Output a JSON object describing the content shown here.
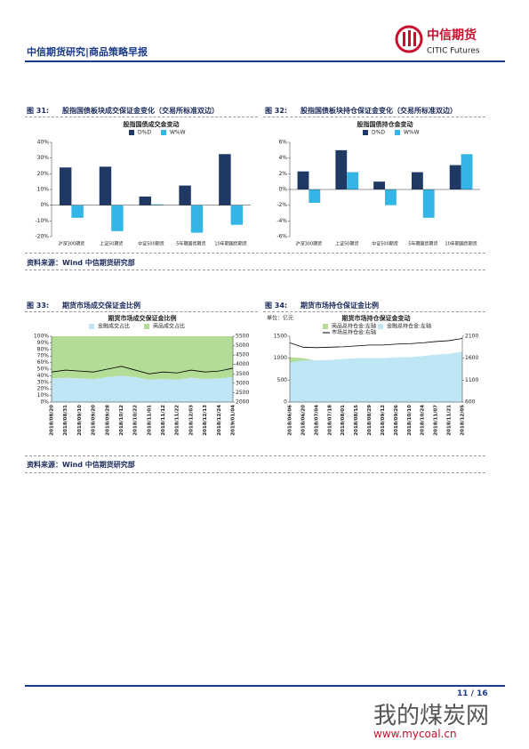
{
  "header": {
    "title": "中信期货研究|商品策略早报",
    "logo_cn": "中信期货",
    "logo_en": "CITIC Futures"
  },
  "figures": [
    {
      "label": "图 31:",
      "title": "股指国债板块成交保证金变化（交易所标准双边）"
    },
    {
      "label": "图 32:",
      "title": "股指国债板块持仓保证金变化（交易所标准双边）"
    },
    {
      "label": "图 33:",
      "title": "期货市场成交保证金比例"
    },
    {
      "label": "图 34:",
      "title": "期货市场持仓保证金比例"
    }
  ],
  "sources": [
    "资料来源：Wind 中信期货研究部",
    "资料来源：Wind 中信期货研究部"
  ],
  "chart_data": [
    {
      "type": "bar",
      "title": "股指国债成交金变动",
      "categories": [
        "沪深300期货",
        "上证50期货",
        "中证500期货",
        "5年期国债期货",
        "10年期国债期货"
      ],
      "series": [
        {
          "name": "D%D",
          "color": "#1f3864",
          "values": [
            24,
            24.5,
            5.5,
            12.5,
            32.5
          ]
        },
        {
          "name": "W%W",
          "color": "#33b5e5",
          "values": [
            -8,
            -16.5,
            0.5,
            -17.5,
            -12.5
          ]
        }
      ],
      "ylim": [
        -20,
        40
      ],
      "yticks": [
        {
          "value": -20,
          "label": "-20%"
        },
        {
          "value": -10,
          "label": "-10%"
        },
        {
          "value": 0,
          "label": "0%"
        },
        {
          "value": 10,
          "label": "10%"
        },
        {
          "value": 20,
          "label": "20%"
        },
        {
          "value": 30,
          "label": "30%"
        },
        {
          "value": 40,
          "label": "40%"
        }
      ]
    },
    {
      "type": "bar",
      "title": "股指国债持仓金变动",
      "categories": [
        "沪深300期货",
        "上证50期货",
        "中证500期货",
        "5年期国债期货",
        "10年期国债期货"
      ],
      "series": [
        {
          "name": "D%D",
          "color": "#1f3864",
          "values": [
            2.3,
            5.0,
            1.0,
            2.2,
            3.1
          ]
        },
        {
          "name": "W%W",
          "color": "#33b5e5",
          "values": [
            -1.7,
            2.2,
            -2.0,
            -3.6,
            4.5
          ]
        }
      ],
      "ylim": [
        -6,
        6
      ],
      "yticks": [
        {
          "value": -6,
          "label": "-6%"
        },
        {
          "value": -4,
          "label": "-4%"
        },
        {
          "value": -2,
          "label": "-2%"
        },
        {
          "value": 0,
          "label": "0%"
        },
        {
          "value": 2,
          "label": "2%"
        },
        {
          "value": 4,
          "label": "4%"
        },
        {
          "value": 6,
          "label": "6%"
        }
      ]
    },
    {
      "type": "area",
      "title": "期货市场成交保证金比例",
      "stacked": true,
      "categories": [
        "2018/08/20",
        "2018/08/31",
        "2018/09/10",
        "2018/09/20",
        "2018/09/28",
        "2018/10/12",
        "2018/10/22",
        "2018/11/01",
        "2018/11/12",
        "2018/11/22",
        "2018/12/03",
        "2018/12/13",
        "2018/12/24",
        "2019/01/04"
      ],
      "series": [
        {
          "name": "金融成交占比",
          "color": "#bfe6f5",
          "values": [
            36,
            37,
            36,
            35,
            38,
            40,
            38,
            34,
            35,
            34,
            37,
            35,
            36,
            38
          ]
        },
        {
          "name": "商品成交占比",
          "color": "#b3dc97",
          "values": [
            64,
            63,
            64,
            65,
            62,
            60,
            62,
            66,
            65,
            66,
            63,
            65,
            64,
            62
          ]
        },
        {
          "type": "line",
          "axis": "y2",
          "color": "#000000",
          "values": [
            3600,
            3700,
            3650,
            3600,
            3750,
            3900,
            3700,
            3500,
            3600,
            3550,
            3700,
            3600,
            3650,
            3800
          ]
        }
      ],
      "ylim": [
        0,
        100
      ],
      "yticks": [
        {
          "value": 0,
          "label": "0%"
        },
        {
          "value": 10,
          "label": "10%"
        },
        {
          "value": 20,
          "label": "20%"
        },
        {
          "value": 30,
          "label": "30%"
        },
        {
          "value": 40,
          "label": "40%"
        },
        {
          "value": 50,
          "label": "50%"
        },
        {
          "value": 60,
          "label": "60%"
        },
        {
          "value": 70,
          "label": "70%"
        },
        {
          "value": 80,
          "label": "80%"
        },
        {
          "value": 90,
          "label": "90%"
        },
        {
          "value": 100,
          "label": "100%"
        }
      ],
      "y2lim": [
        2000,
        5500
      ],
      "y2ticks": [
        2000,
        2500,
        3000,
        3500,
        4000,
        4500,
        5000,
        5500
      ]
    },
    {
      "type": "area",
      "title": "期货市场持仓保证金变动",
      "unit": "单位：亿元",
      "categories": [
        "2018/06/06",
        "2018/06/20",
        "2018/07/04",
        "2018/07/18",
        "2018/08/01",
        "2018/08/15",
        "2018/08/29",
        "2018/09/12",
        "2018/09/26",
        "2018/10/10",
        "2018/10/24",
        "2018/11/07",
        "2018/11/21",
        "2018/12/05"
      ],
      "series": [
        {
          "name": "商品总持仓金:左轴",
          "color": "#b3dc97",
          "values": [
            1020,
            1000,
            940,
            950,
            960,
            980,
            990,
            990,
            1000,
            1000,
            1030,
            1060,
            1080,
            1130
          ]
        },
        {
          "name": "金融总持仓金:左轴",
          "color": "#bfe6f5",
          "values": [
            900,
            950,
            950,
            960,
            980,
            1000,
            1000,
            1000,
            1020,
            1020,
            1050,
            1080,
            1100,
            1150
          ]
        },
        {
          "name": "市场总持仓金:右轴",
          "type": "line",
          "axis": "y2",
          "color": "#000000",
          "values": [
            1950,
            1850,
            1840,
            1850,
            1860,
            1880,
            1900,
            1900,
            1920,
            1930,
            1950,
            1980,
            2000,
            2050
          ]
        }
      ],
      "ylim": [
        0,
        1500
      ],
      "yticks": [
        0,
        500,
        1000,
        1500
      ],
      "y2lim": [
        600,
        2100
      ],
      "y2ticks": [
        600,
        1100,
        1600,
        2100
      ]
    }
  ],
  "footer": {
    "page": "11 / 16"
  },
  "watermark": {
    "name": "我的煤炭网",
    "url": "www.mycoal.cn"
  }
}
